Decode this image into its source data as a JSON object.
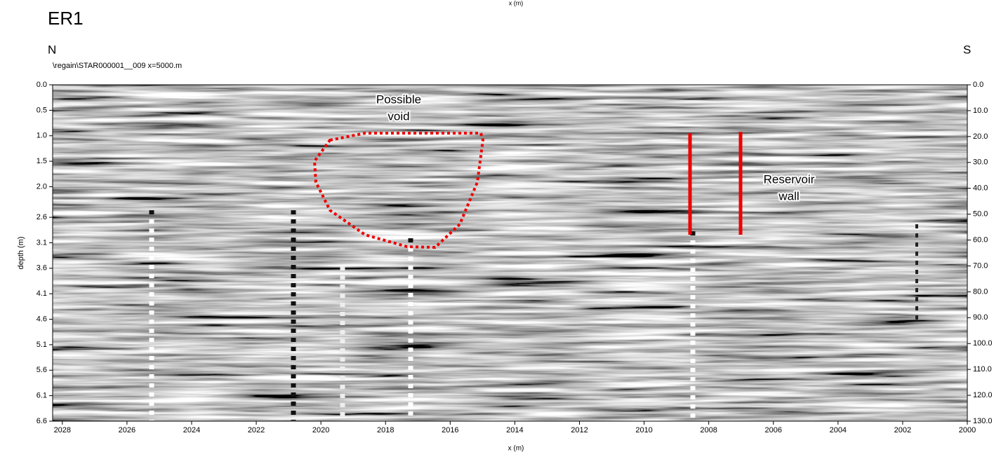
{
  "chart_data": {
    "type": "radargram",
    "title": "ER1",
    "left_label": "N",
    "right_label": "S",
    "file_label": "\\regain\\STAR000001__009   x=5000.m",
    "xlabel": "x (m)",
    "xlabel_top": "x (m)",
    "ylabel": "depth (m)",
    "xlim": [
      2028.3,
      2000
    ],
    "xticks": [
      2028,
      2026,
      2024,
      2022,
      2020,
      2018,
      2016,
      2014,
      2012,
      2010,
      2008,
      2006,
      2004,
      2002,
      2000
    ],
    "ylim": [
      0,
      6.6
    ],
    "yticks": [
      {
        "value": 0,
        "label": "0.0"
      },
      0.5,
      {
        "value": 1,
        "label": "1.0"
      },
      1.5,
      {
        "value": 2,
        "label": "2.0"
      },
      2.6,
      3.1,
      3.6,
      4.1,
      4.6,
      5.1,
      5.6,
      6.1,
      6.6
    ],
    "y2lim": [
      0,
      130
    ],
    "y2ticks": [
      {
        "value": 0,
        "label": "0.0"
      },
      {
        "value": 10,
        "label": "10.0"
      },
      {
        "value": 20,
        "label": "20.0"
      },
      {
        "value": 30,
        "label": "30.0"
      },
      {
        "value": 40,
        "label": "40.0"
      },
      {
        "value": 50,
        "label": "50.0"
      },
      {
        "value": 60,
        "label": "60.0"
      },
      {
        "value": 70,
        "label": "70.0"
      },
      {
        "value": 80,
        "label": "80.0"
      },
      {
        "value": 90,
        "label": "90.0"
      },
      {
        "value": 100,
        "label": "100.0"
      },
      {
        "value": 110,
        "label": "110.0"
      },
      {
        "value": 120,
        "label": "120.0"
      },
      {
        "value": 130,
        "label": "130.0"
      }
    ],
    "annotations": [
      {
        "lines": [
          "Possible",
          "void"
        ]
      },
      {
        "lines": [
          "Reservoir",
          "wall"
        ]
      }
    ]
  }
}
